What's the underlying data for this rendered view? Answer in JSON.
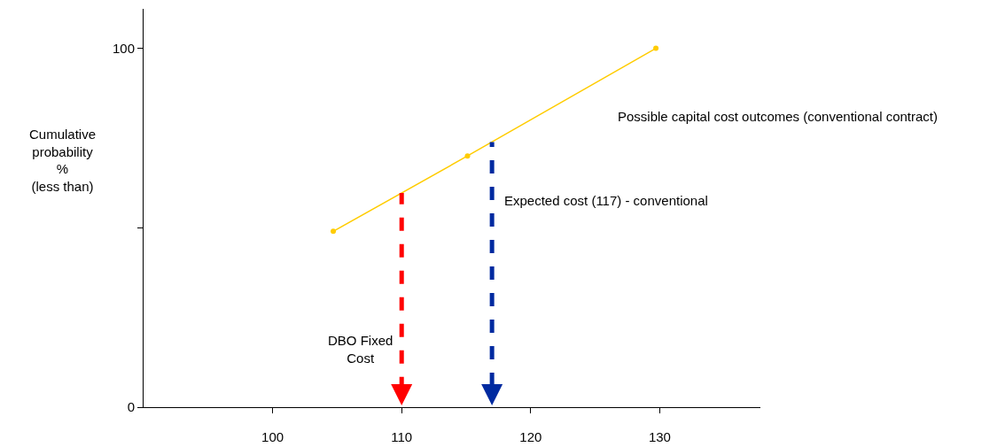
{
  "chart_data": {
    "type": "line",
    "ylabel": "Cumulative\nprobability\n%\n(less than)",
    "x": [
      104.7,
      115.1,
      129.7
    ],
    "series": [
      {
        "name": "Possible capital cost outcomes (conventional contract)",
        "color": "#ffcc00",
        "values": [
          49,
          70,
          100
        ]
      }
    ],
    "marker": "circle",
    "line_style": "solid",
    "legend": false,
    "grid": false,
    "xlim": [
      90,
      137.8
    ],
    "xticks": [
      100,
      110,
      120,
      130
    ],
    "ylim": [
      0,
      111
    ],
    "yticks": [
      0,
      {
        "value": 50,
        "label": null
      },
      100
    ],
    "ref_lines": [
      {
        "axis": "x",
        "value": 110,
        "label": "DBO Fixed\nCost",
        "color": "#ff0000",
        "line_style": "dashed"
      },
      {
        "axis": "x",
        "value": 117,
        "label": "Expected cost (117) - conventional",
        "color": "#002aa0",
        "line_style": "dashed"
      }
    ]
  }
}
